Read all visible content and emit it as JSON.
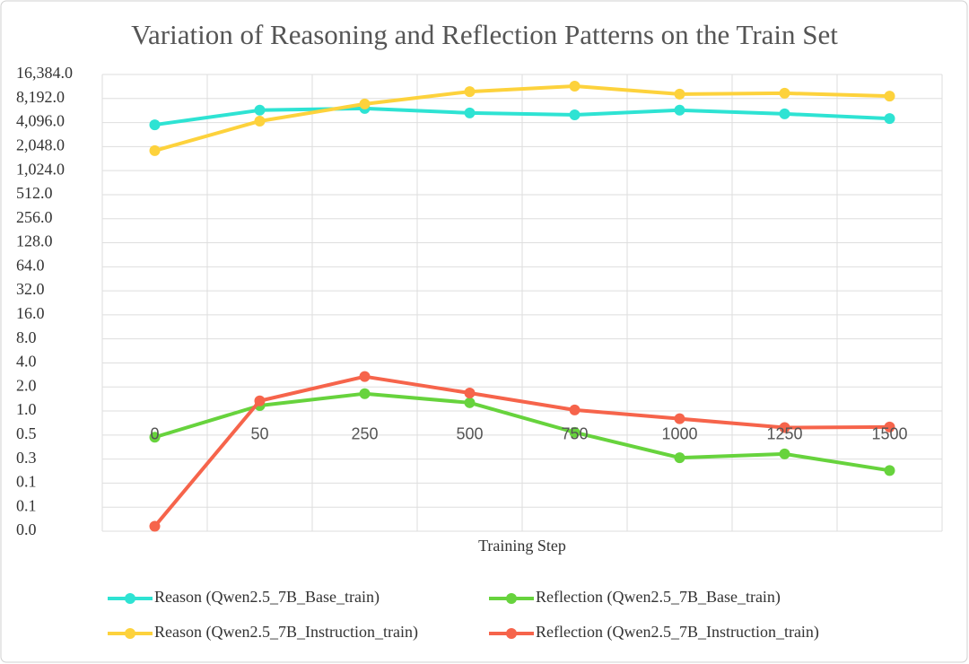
{
  "chart_data": {
    "type": "line",
    "title": "Variation of Reasoning and Reflection Patterns on the Train Set",
    "x_label": "Training Step",
    "categories": [
      "0",
      "50",
      "250",
      "500",
      "750",
      "1000",
      "1250",
      "1500"
    ],
    "log_scale": "y",
    "log_base": 2,
    "grid": true,
    "legend": "bottom",
    "x_axis_crosses": 0.5,
    "ylim": [
      0.03125,
      16384
    ],
    "yticks": [
      {
        "value": 16384,
        "label": "16,384.0"
      },
      {
        "value": 8192,
        "label": "8,192.0"
      },
      {
        "value": 4096,
        "label": "4,096.0"
      },
      {
        "value": 2048,
        "label": "2,048.0"
      },
      {
        "value": 1024,
        "label": "1,024.0"
      },
      {
        "value": 512,
        "label": "512.0"
      },
      {
        "value": 256,
        "label": "256.0"
      },
      {
        "value": 128,
        "label": "128.0"
      },
      {
        "value": 64,
        "label": "64.0"
      },
      {
        "value": 32,
        "label": "32.0"
      },
      {
        "value": 16,
        "label": "16.0"
      },
      {
        "value": 8,
        "label": "8.0"
      },
      {
        "value": 4,
        "label": "4.0"
      },
      {
        "value": 2,
        "label": "2.0"
      },
      {
        "value": 1,
        "label": "1.0"
      },
      {
        "value": 0.5,
        "label": "0.5"
      },
      {
        "value": 0.25,
        "label": "0.3"
      },
      {
        "value": 0.125,
        "label": "0.1"
      },
      {
        "value": 0.0625,
        "label": "0.1"
      },
      {
        "value": 0.03125,
        "label": "0.0"
      }
    ],
    "series": [
      {
        "name": "Reason (Qwen2.5_7B_Base_train)",
        "color": "#2ee3d3",
        "values": [
          3840,
          5850,
          6150,
          5400,
          5120,
          5850,
          5260,
          4600
        ]
      },
      {
        "name": "Reflection (Qwen2.5_7B_Base_train)",
        "color": "#67d33d",
        "values": [
          0.47,
          1.17,
          1.65,
          1.27,
          0.54,
          0.26,
          0.29,
          0.18
        ]
      },
      {
        "name": "Reason (Qwen2.5_7B_Instruction_train)",
        "color": "#fdd23c",
        "values": [
          1820,
          4270,
          7000,
          10000,
          11700,
          9300,
          9540,
          8780
        ]
      },
      {
        "name": "Reflection (Qwen2.5_7B_Instruction_train)",
        "color": "#f6644b",
        "values": [
          0.036,
          1.34,
          2.7,
          1.68,
          1.03,
          0.8,
          0.62,
          0.63
        ]
      }
    ]
  }
}
